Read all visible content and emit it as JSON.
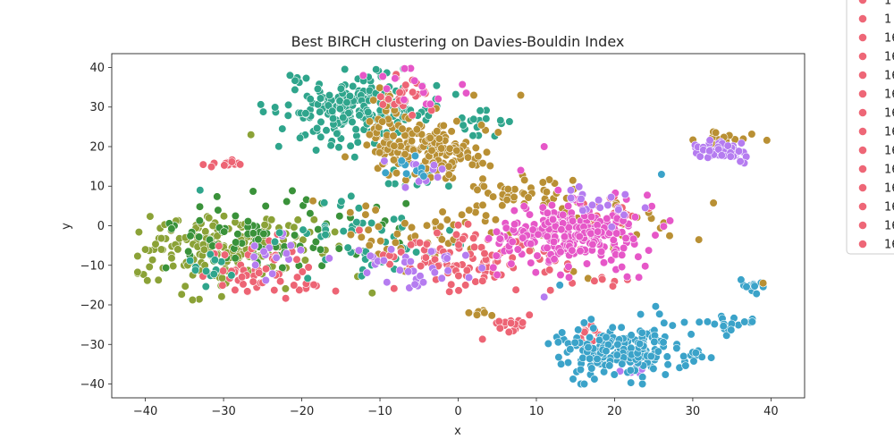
{
  "chart_data": {
    "type": "scatter",
    "title": "Best BIRCH clustering on Davies-Bouldin Index",
    "xlabel": "x",
    "ylabel": "y",
    "xlim": [
      -44.3,
      44.3
    ],
    "ylim": [
      -43.5,
      43.5
    ],
    "xticks": [
      -40,
      -30,
      -20,
      -10,
      0,
      10,
      20,
      30,
      40
    ],
    "yticks": [
      -40,
      -30,
      -20,
      -10,
      0,
      10,
      20,
      30,
      40
    ],
    "xtick_labels": [
      "−40",
      "−30",
      "−20",
      "−10",
      "0",
      "10",
      "20",
      "30",
      "40"
    ],
    "ytick_labels": [
      "−40",
      "−30",
      "−20",
      "−10",
      "0",
      "10",
      "20",
      "30",
      "40"
    ],
    "grid": false,
    "legend_placement": "top-right, outside plot (clipped)",
    "legend_entries": [
      "1",
      "1",
      "16",
      "16",
      "16",
      "16",
      "16",
      "16",
      "16",
      "16",
      "16",
      "16",
      "16",
      "16"
    ],
    "colors": {
      "green": "#3a923a",
      "olive": "#8ba237",
      "teal": "#2fa58c",
      "gold": "#b99034",
      "blue": "#3ba3c9",
      "purple": "#b57cf0",
      "magenta": "#e657c8",
      "red": "#ed6474",
      "legend_marker": "#ee6777"
    },
    "clusters": [
      {
        "color": "olive",
        "cx": -30,
        "cy": -6,
        "sx": 5.5,
        "sy": 4.5,
        "n": 190
      },
      {
        "color": "green",
        "cx": -29,
        "cy": -3,
        "sx": 5.0,
        "sy": 5.0,
        "n": 50
      },
      {
        "color": "green",
        "cx": -18,
        "cy": -3,
        "sx": 6.0,
        "sy": 5.0,
        "n": 35
      },
      {
        "color": "red",
        "cx": -25,
        "cy": -11,
        "sx": 3.5,
        "sy": 3.5,
        "n": 50
      },
      {
        "color": "red",
        "cx": -20,
        "cy": -15,
        "sx": 2.0,
        "sy": 1.0,
        "n": 8
      },
      {
        "color": "red",
        "cx": -29,
        "cy": 15.8,
        "sx": 1.2,
        "sy": 0.6,
        "n": 12
      },
      {
        "color": "purple",
        "cx": -24,
        "cy": -7,
        "sx": 3.0,
        "sy": 3.0,
        "n": 15
      },
      {
        "color": "teal",
        "cx": -30,
        "cy": -10,
        "sx": 2.5,
        "sy": 3.0,
        "n": 12
      },
      {
        "color": "teal",
        "cx": -13,
        "cy": 29,
        "sx": 5.0,
        "sy": 4.5,
        "n": 210
      },
      {
        "color": "teal",
        "cx": -12,
        "cy": -3,
        "sx": 5.0,
        "sy": 5.0,
        "n": 50
      },
      {
        "color": "teal",
        "cx": 3,
        "cy": 26,
        "sx": 2.5,
        "sy": 1.5,
        "n": 15
      },
      {
        "color": "teal",
        "cx": -5,
        "cy": 11,
        "sx": 3.0,
        "sy": 1.5,
        "n": 12
      },
      {
        "color": "gold",
        "cx": -3,
        "cy": 19,
        "sx": 4.0,
        "sy": 3.5,
        "n": 150
      },
      {
        "color": "gold",
        "cx": -9,
        "cy": 27,
        "sx": 2.0,
        "sy": 4.0,
        "n": 30
      },
      {
        "color": "gold",
        "cx": 8,
        "cy": 8,
        "sx": 4.0,
        "sy": 2.0,
        "n": 45
      },
      {
        "color": "gold",
        "cx": 19,
        "cy": -1,
        "sx": 5.0,
        "sy": 5.0,
        "n": 40
      },
      {
        "color": "gold",
        "cx": -3,
        "cy": -2,
        "sx": 6.0,
        "sy": 5.0,
        "n": 50
      },
      {
        "color": "gold",
        "cx": 34,
        "cy": 22,
        "sx": 2.0,
        "sy": 0.7,
        "n": 15
      },
      {
        "color": "gold",
        "cx": 3,
        "cy": -22,
        "sx": 1.0,
        "sy": 0.5,
        "n": 8
      },
      {
        "color": "red",
        "cx": 1,
        "cy": -8,
        "sx": 6.0,
        "sy": 4.0,
        "n": 110
      },
      {
        "color": "red",
        "cx": -7,
        "cy": 32,
        "sx": 2.0,
        "sy": 3.0,
        "n": 25
      },
      {
        "color": "red",
        "cx": 21,
        "cy": 3,
        "sx": 3.0,
        "sy": 2.0,
        "n": 20
      },
      {
        "color": "red",
        "cx": 6.5,
        "cy": -25,
        "sx": 1.2,
        "sy": 1.5,
        "n": 16
      },
      {
        "color": "red",
        "cx": 20,
        "cy": -14,
        "sx": 1.5,
        "sy": 0.5,
        "n": 8
      },
      {
        "color": "red",
        "cx": 16,
        "cy": -27,
        "sx": 1.5,
        "sy": 2.0,
        "n": 12
      },
      {
        "color": "magenta",
        "cx": 15,
        "cy": -2,
        "sx": 4.5,
        "sy": 4.0,
        "n": 220
      },
      {
        "color": "magenta",
        "cx": 7,
        "cy": -4,
        "sx": 2.5,
        "sy": 3.0,
        "n": 25
      },
      {
        "color": "magenta",
        "cx": -5,
        "cy": 35,
        "sx": 3.0,
        "sy": 2.5,
        "n": 15
      },
      {
        "color": "purple",
        "cx": 34,
        "cy": 19,
        "sx": 2.0,
        "sy": 1.0,
        "n": 60
      },
      {
        "color": "purple",
        "cx": -7,
        "cy": -10,
        "sx": 4.0,
        "sy": 3.0,
        "n": 35
      },
      {
        "color": "purple",
        "cx": 17,
        "cy": 6,
        "sx": 3.0,
        "sy": 2.0,
        "n": 20
      },
      {
        "color": "purple",
        "cx": -5,
        "cy": 13,
        "sx": 2.0,
        "sy": 2.0,
        "n": 10
      },
      {
        "color": "purple",
        "cx": 22,
        "cy": -37,
        "sx": 1.5,
        "sy": 0.6,
        "n": 6
      },
      {
        "color": "blue",
        "cx": 21,
        "cy": -31,
        "sx": 4.5,
        "sy": 3.5,
        "n": 200
      },
      {
        "color": "blue",
        "cx": 34,
        "cy": -25,
        "sx": 1.8,
        "sy": 1.0,
        "n": 20
      },
      {
        "color": "blue",
        "cx": 37.5,
        "cy": -15.5,
        "sx": 0.7,
        "sy": 1.0,
        "n": 12
      },
      {
        "color": "blue",
        "cx": 30,
        "cy": -33,
        "sx": 1.0,
        "sy": 0.8,
        "n": 8
      },
      {
        "color": "blue",
        "cx": -6,
        "cy": 14,
        "sx": 2.0,
        "sy": 2.0,
        "n": 10
      }
    ],
    "points": [
      {
        "x": -40,
        "y": -6,
        "color": "olive"
      },
      {
        "x": -33,
        "y": 9,
        "color": "teal"
      },
      {
        "x": -26.5,
        "y": 23,
        "color": "olive"
      },
      {
        "x": -21.5,
        "y": 38,
        "color": "teal"
      },
      {
        "x": -10.5,
        "y": 39.5,
        "color": "teal"
      },
      {
        "x": 2,
        "y": 33,
        "color": "gold"
      },
      {
        "x": 8,
        "y": 33,
        "color": "gold"
      },
      {
        "x": 26,
        "y": 13,
        "color": "blue"
      },
      {
        "x": 39,
        "y": -14.5,
        "color": "gold"
      },
      {
        "x": 11,
        "y": -18,
        "color": "purple"
      },
      {
        "x": 13,
        "y": -15,
        "color": "blue"
      },
      {
        "x": -11,
        "y": -17,
        "color": "olive"
      },
      {
        "x": 8,
        "y": 14,
        "color": "magenta"
      },
      {
        "x": 11,
        "y": 20,
        "color": "magenta"
      }
    ],
    "seed": 7
  }
}
